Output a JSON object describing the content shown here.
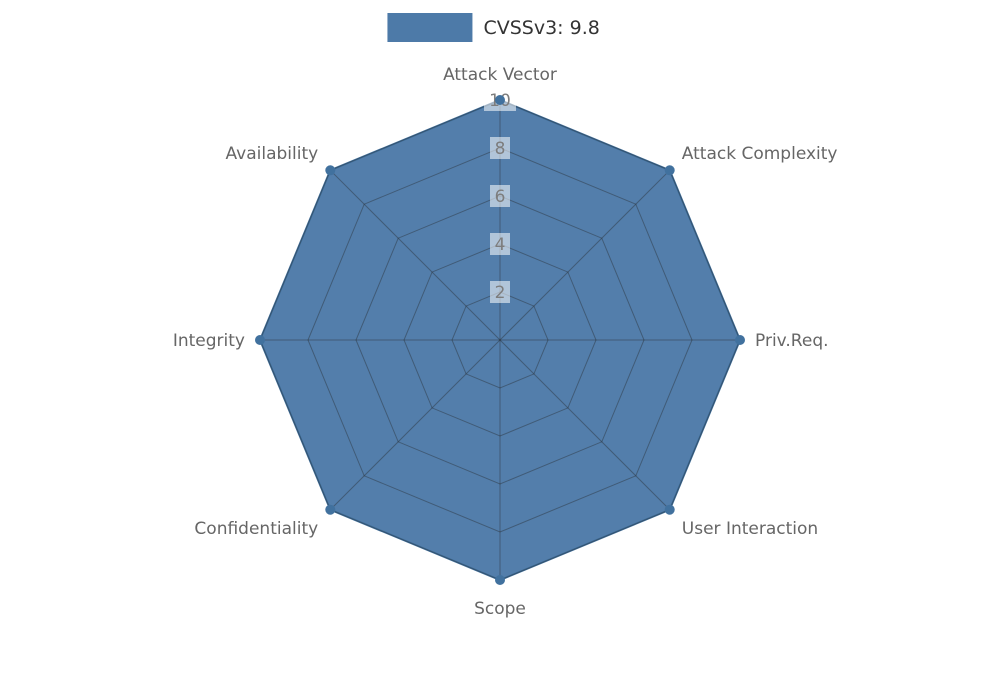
{
  "chart_data": {
    "type": "radar",
    "categories": [
      "Attack Vector",
      "Attack Complexity",
      "Priv.Req.",
      "User Interaction",
      "Scope",
      "Confidentiality",
      "Integrity",
      "Availability"
    ],
    "series": [
      {
        "name": "CVSSv3: 9.8",
        "values": [
          10,
          10,
          10,
          10,
          10,
          10,
          10,
          10
        ]
      }
    ],
    "ticks": [
      2,
      4,
      6,
      8,
      10
    ],
    "rmax": 10,
    "legend_position": "top-center",
    "grid": true,
    "colors": {
      "fill": "#4d7aa8",
      "edge": "#41719e",
      "marker": "#41719e",
      "grid_line": "rgba(35,35,35,0.38)",
      "axis_label": "#666666",
      "tick_label": "#7d7d7d",
      "tick_box": "rgba(255,255,255,0.55)",
      "legend_text": "#333333"
    }
  }
}
